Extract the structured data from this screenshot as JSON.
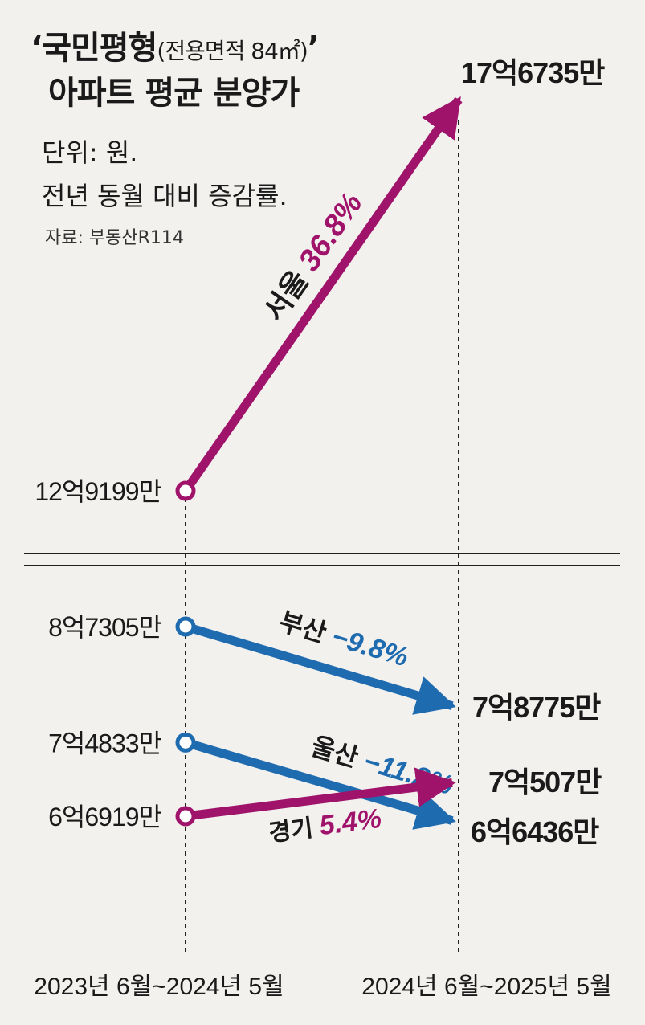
{
  "title": {
    "main": "‘국민평형",
    "sub": "(전용면적 84㎡)",
    "close": "’",
    "line2": "아파트 평균 분양가"
  },
  "unit": "단위: 원.",
  "note": "전년 동월 대비 증감률.",
  "source": "자료: 부동산R114",
  "colors": {
    "seoul": "#a0136b",
    "gyeonggi": "#a0136b",
    "busan": "#1f6bb0",
    "ulsan": "#1f6bb0",
    "text": "#1a1a1a",
    "background": "#f3f1ee"
  },
  "chart_data": {
    "type": "line",
    "x": [
      "2023년 6월~2024년 5월",
      "2024년 6월~2025년 5월"
    ],
    "axis_break": true,
    "series": [
      {
        "name": "서울",
        "key": "seoul",
        "values": [
          1291990000,
          1767350000
        ],
        "start_label": "12억9199만",
        "end_label": "17억6735만",
        "change": "36.8%"
      },
      {
        "name": "부산",
        "key": "busan",
        "values": [
          873050000,
          787750000
        ],
        "start_label": "8억7305만",
        "end_label": "7억8775만",
        "change": "−9.8%"
      },
      {
        "name": "울산",
        "key": "ulsan",
        "values": [
          748330000,
          664360000
        ],
        "start_label": "7억4833만",
        "end_label": "6억6436만",
        "change": "−11.2%"
      },
      {
        "name": "경기",
        "key": "gyeonggi",
        "values": [
          669190000,
          705070000
        ],
        "start_label": "6억6919만",
        "end_label": "7억507만",
        "change": "5.4%"
      }
    ]
  }
}
